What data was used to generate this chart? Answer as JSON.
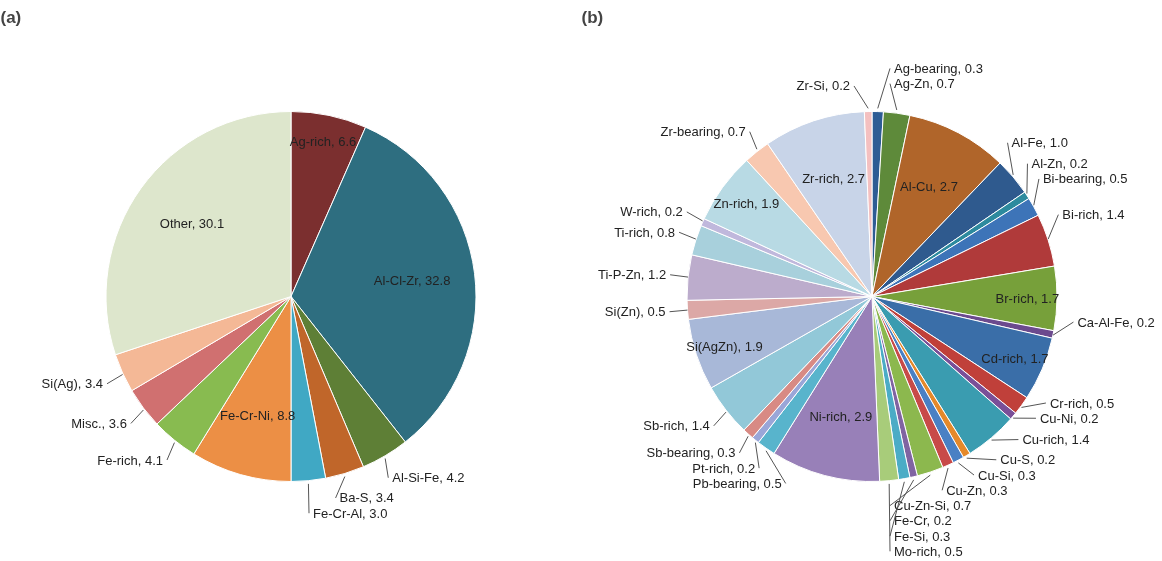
{
  "chart_data": [
    {
      "type": "pie",
      "title": "(a)",
      "data_labels": true,
      "categories": [
        "Ag-rich",
        "Al-Cl-Zr",
        "Al-Si-Fe",
        "Ba-S",
        "Fe-Cr-Al",
        "Fe-Cr-Ni",
        "Fe-rich",
        "Misc.",
        "Si(Ag)",
        "Other"
      ],
      "values": [
        6.6,
        32.8,
        4.2,
        3.4,
        3.0,
        8.8,
        4.1,
        3.6,
        3.4,
        30.1
      ],
      "value_labels": [
        "6.6",
        "32.8",
        "4.2",
        "3.4",
        "3.0",
        "8.8",
        "4.1",
        "3.6",
        "3.4",
        "30.1"
      ],
      "colors": [
        "#7b2f2f",
        "#2e6e80",
        "#5e7f36",
        "#c0662a",
        "#40a8c4",
        "#ec8f45",
        "#88bb50",
        "#d07070",
        "#f4b896",
        "#dde6cc"
      ]
    },
    {
      "type": "pie",
      "title": "(b)",
      "data_labels": true,
      "categories": [
        "Ag-bearing",
        "Ag-Zn",
        "Al-Cu",
        "Al-Fe",
        "Al-Zn",
        "Bi-bearing",
        "Bi-rich",
        "Br-rich",
        "Ca-Al-Fe",
        "Cd-rich",
        "Cr-rich",
        "Cu-Ni",
        "Cu-rich",
        "Cu-S",
        "Cu-Si",
        "Cu-Zn",
        "Cu-Zn-Si",
        "Fe-Cr",
        "Fe-Si",
        "Mo-rich",
        "Ni-rich",
        "Pb-bearing",
        "Pt-rich",
        "Sb-bearing",
        "Sb-rich",
        "Si(AgZn)",
        "Si(Zn)",
        "Ti-P-Zn",
        "Ti-rich",
        "W-rich",
        "Zn-rich",
        "Zr-bearing",
        "Zr-rich",
        "Zr-Si"
      ],
      "values": [
        0.3,
        0.7,
        2.7,
        1.0,
        0.2,
        0.5,
        1.4,
        1.7,
        0.2,
        1.7,
        0.5,
        0.2,
        1.4,
        0.2,
        0.3,
        0.3,
        0.7,
        0.2,
        0.3,
        0.5,
        2.9,
        0.5,
        0.2,
        0.3,
        1.4,
        1.9,
        0.5,
        1.2,
        0.8,
        0.2,
        1.9,
        0.7,
        2.7,
        0.2
      ],
      "value_labels": [
        "0.3",
        "0.7",
        "2.7",
        "1.0",
        "0.2",
        "0.5",
        "1.4",
        "1.7",
        "0.2",
        "1.7",
        "0.5",
        "0.2",
        "1.4",
        "0.2",
        "0.3",
        "0.3",
        "0.7",
        "0.2",
        "0.3",
        "0.5",
        "2.9",
        "0.5",
        "0.2",
        "0.3",
        "1.4",
        "1.9",
        "0.5",
        "1.2",
        "0.8",
        "0.2",
        "1.9",
        "0.7",
        "2.7",
        "0.2"
      ],
      "colors": [
        "#2e5c94",
        "#5e8a3a",
        "#b0652a",
        "#2f5a8e",
        "#2d8a9e",
        "#3d74b8",
        "#b03a3a",
        "#77a03a",
        "#6b4a8e",
        "#3a6ea8",
        "#c0403a",
        "#7a4f98",
        "#3a9cb0",
        "#e5892a",
        "#4a80c4",
        "#c84a48",
        "#8cb84e",
        "#8064a2",
        "#4bacc6",
        "#a8cc7a",
        "#9880b8",
        "#58b4cc",
        "#9aa6d8",
        "#d88a84",
        "#92c8d8",
        "#a8b8d8",
        "#dca8a6",
        "#bcaccc",
        "#a8d0dc",
        "#c0b8dc",
        "#b8dae4",
        "#f8c8b0",
        "#c8d4e8",
        "#f4c0c0"
      ]
    }
  ]
}
